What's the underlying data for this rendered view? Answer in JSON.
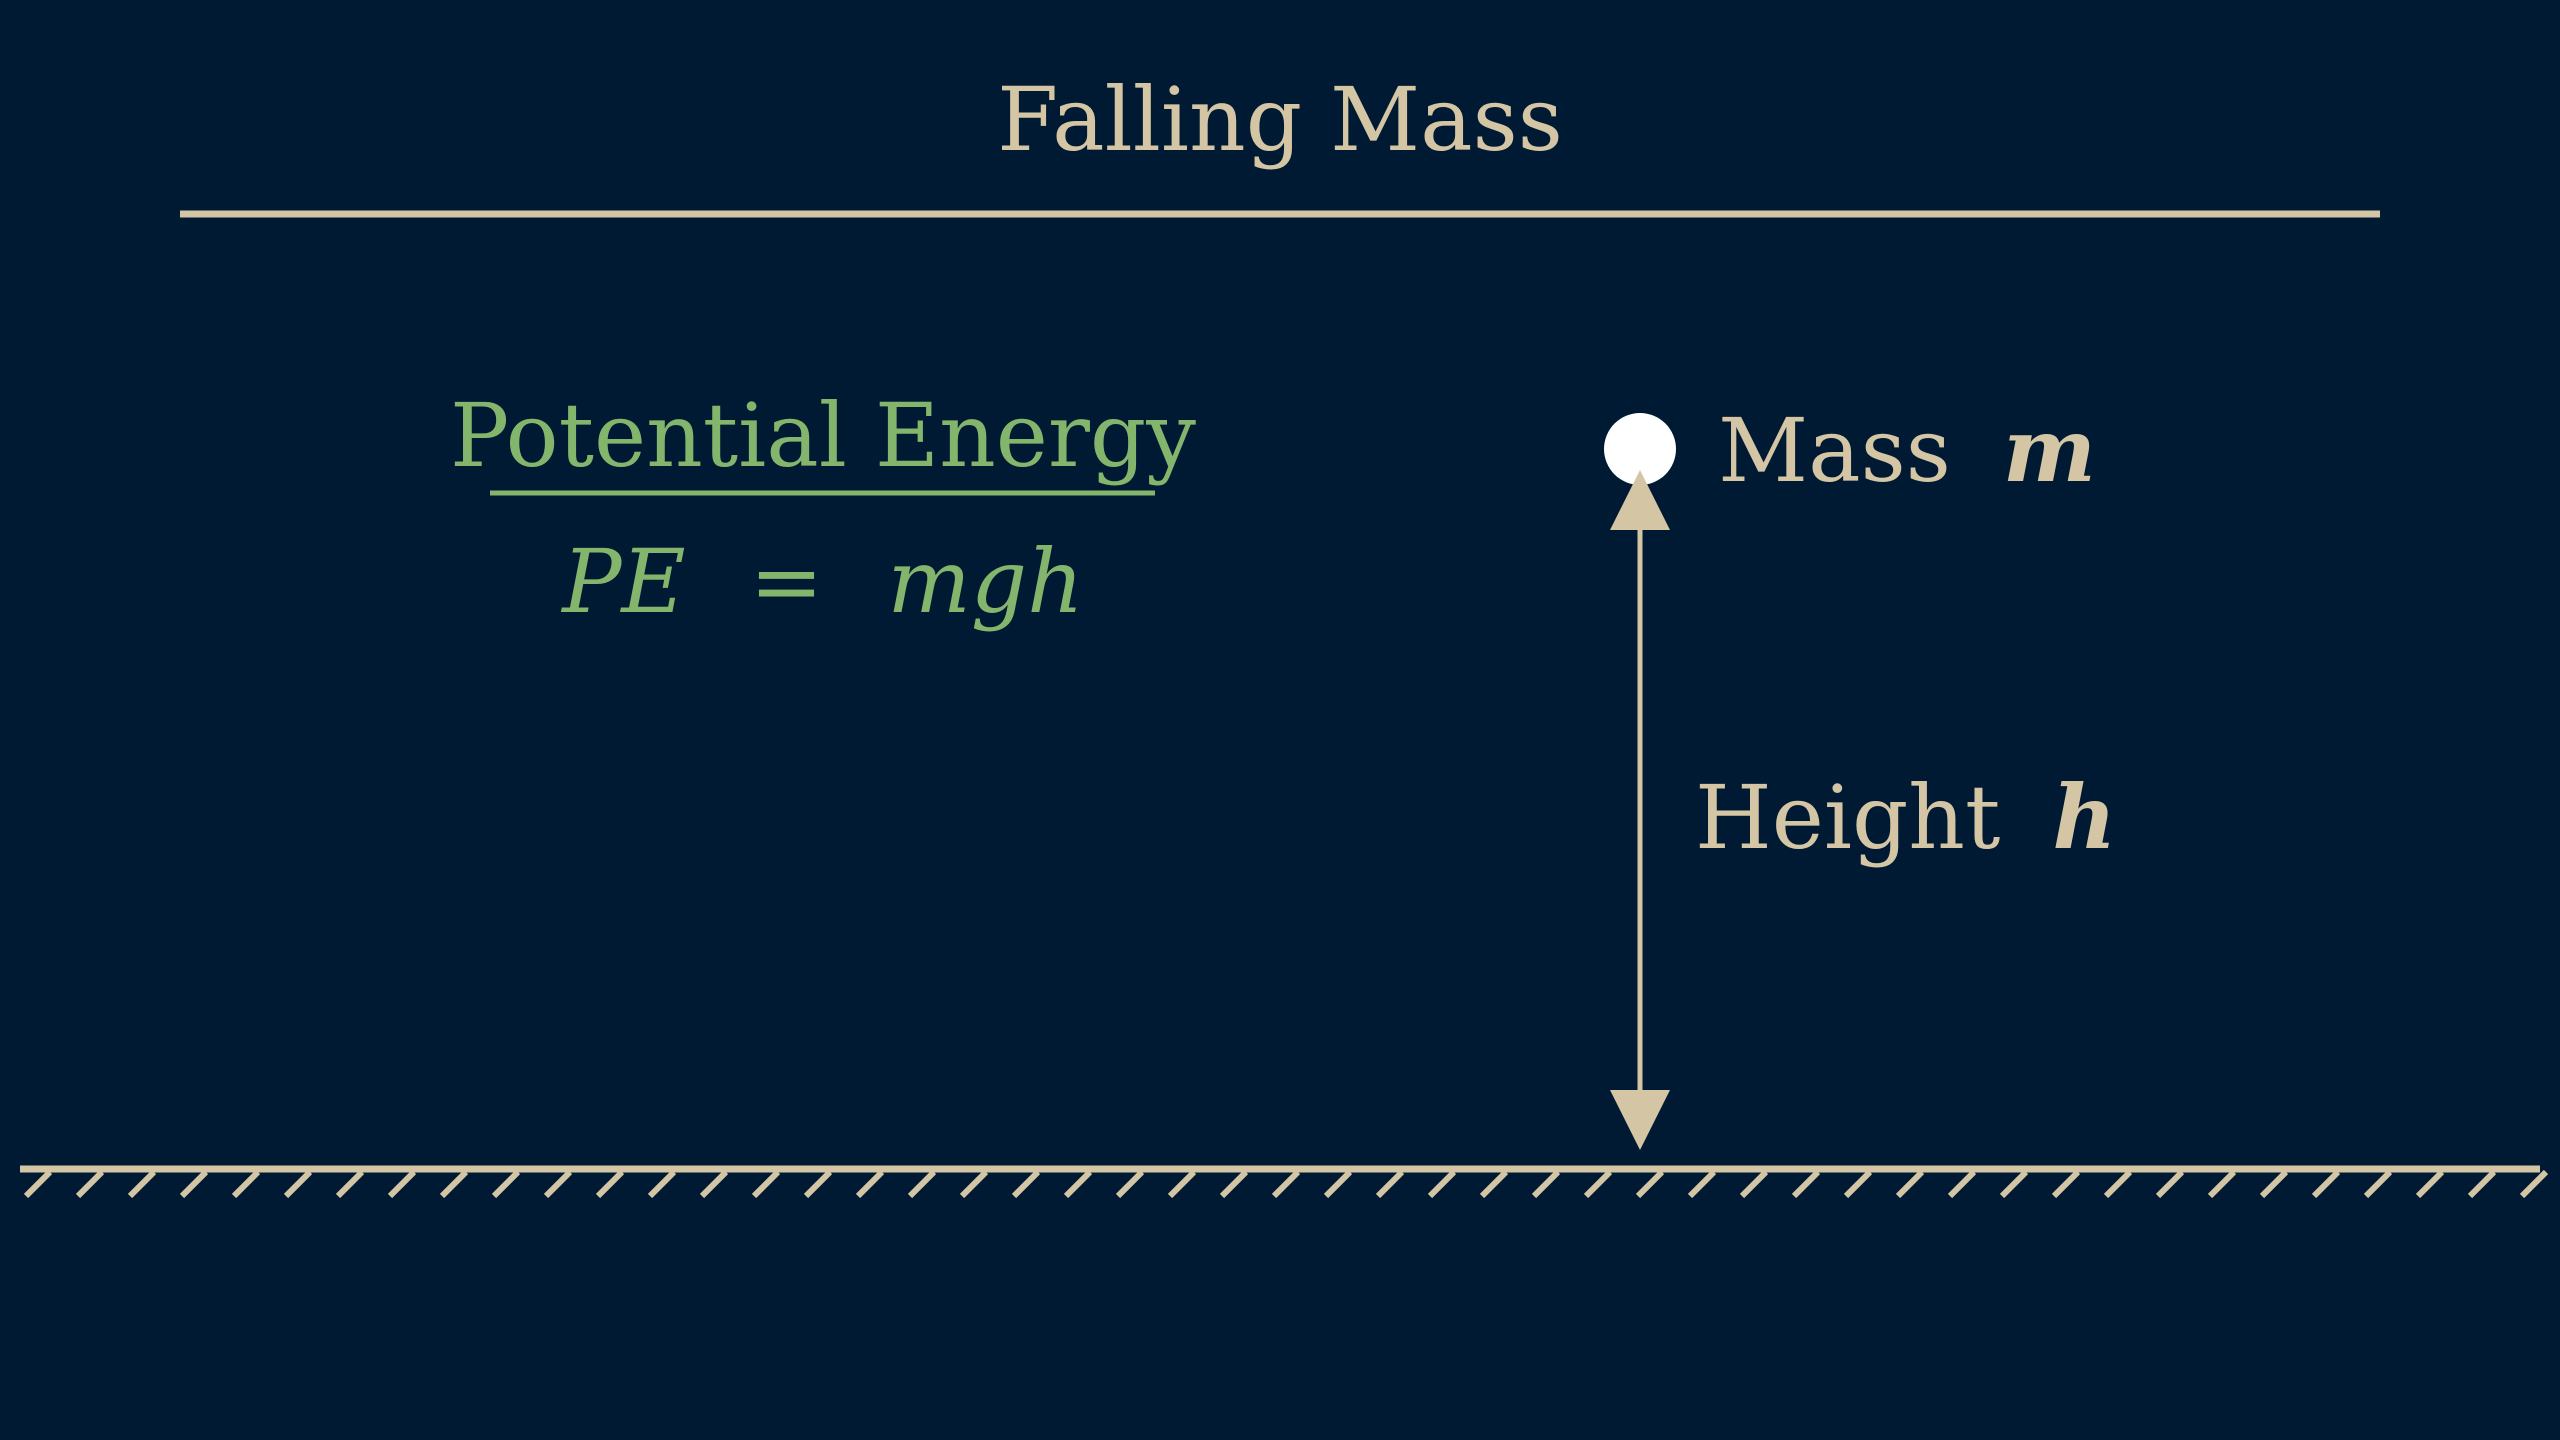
{
  "title": "Falling Mass",
  "formula_heading": "Potential Energy",
  "formula": {
    "lhs": "PE",
    "equals": "=",
    "rhs": "mgh"
  },
  "mass_label": {
    "text": "Mass",
    "symbol": "m"
  },
  "height_label": {
    "text": "Height",
    "symbol": "h"
  },
  "colors": {
    "background": "#011a33",
    "primary": "#d4c5a4",
    "accent_green": "#83b56c",
    "mass_ball": "#ffffff"
  }
}
